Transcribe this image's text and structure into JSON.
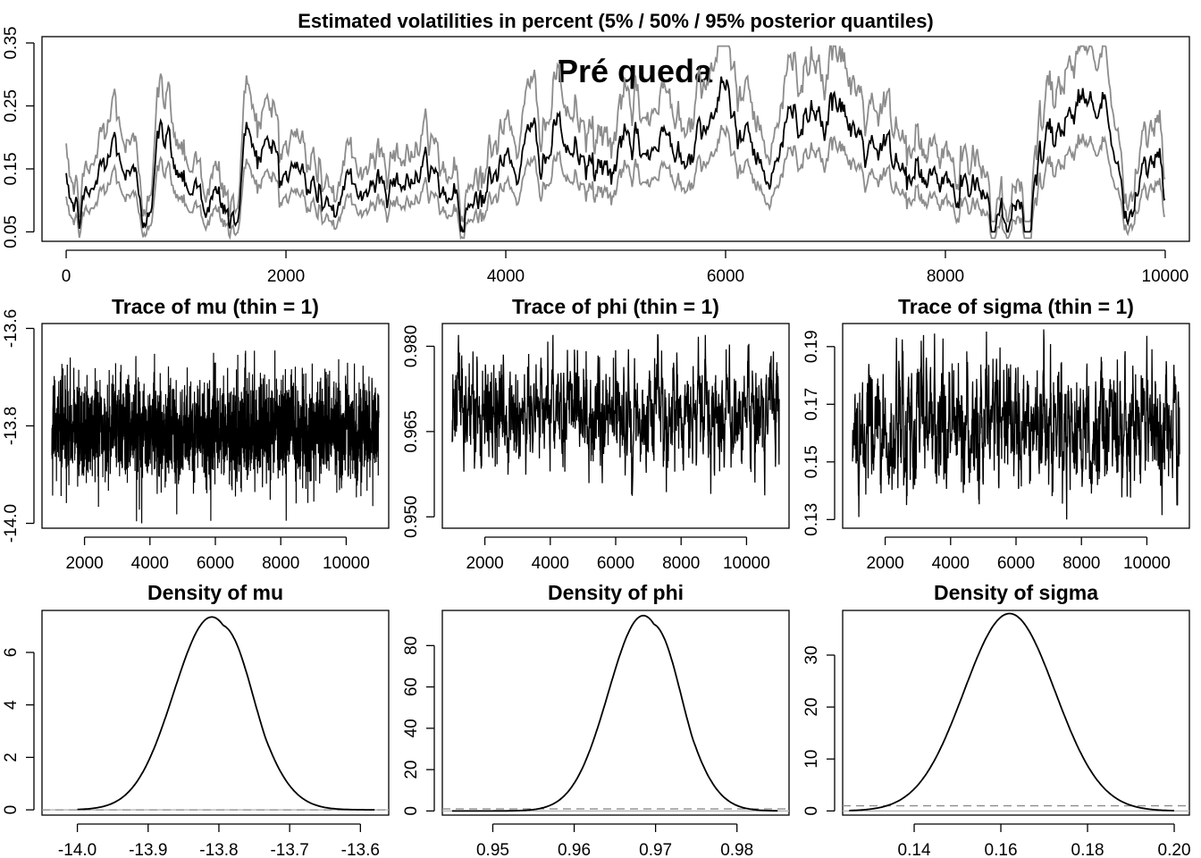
{
  "chart_data": [
    {
      "id": "vol",
      "type": "line",
      "title": "Estimated volatilities in percent (5% / 50% / 95% posterior quantiles)",
      "annotation": "Pré queda",
      "xlim": [
        -220,
        10220
      ],
      "ylim": [
        0.035,
        0.36
      ],
      "xticks": [
        0,
        2000,
        4000,
        6000,
        8000,
        10000
      ],
      "xticklabels": [
        "0",
        "2000",
        "4000",
        "6000",
        "8000",
        "10000"
      ],
      "yticks": [
        0.05,
        0.15,
        0.25,
        0.35
      ],
      "yticklabels": [
        "0.05",
        "0.15",
        "0.25",
        "0.35"
      ],
      "grid": false,
      "colors": {
        "median": "#000000",
        "quantiles": "#8c8c8c"
      },
      "key_points": [
        [
          0,
          0.11
        ],
        [
          120,
          0.07
        ],
        [
          450,
          0.19
        ],
        [
          700,
          0.08
        ],
        [
          850,
          0.2
        ],
        [
          1550,
          0.06
        ],
        [
          1650,
          0.21
        ],
        [
          2450,
          0.09
        ],
        [
          3050,
          0.15
        ],
        [
          3600,
          0.11
        ],
        [
          4450,
          0.2
        ],
        [
          4800,
          0.14
        ],
        [
          5600,
          0.2
        ],
        [
          5900,
          0.26
        ],
        [
          6400,
          0.16
        ],
        [
          6750,
          0.27
        ],
        [
          7500,
          0.15
        ],
        [
          8000,
          0.12
        ],
        [
          8750,
          0.07
        ],
        [
          9100,
          0.25
        ],
        [
          9450,
          0.27
        ],
        [
          9650,
          0.06
        ],
        [
          9950,
          0.18
        ],
        [
          10000,
          0.11
        ]
      ],
      "series": [
        {
          "name": "50%",
          "values_note": "",
          "band": "median"
        },
        {
          "name": "5%",
          "band": "lower"
        },
        {
          "name": "95%",
          "band": "upper"
        }
      ]
    },
    {
      "id": "trace_mu",
      "type": "line",
      "title": "Trace of mu (thin = 1)",
      "xlim": [
        700,
        11300
      ],
      "ylim": [
        -14.01,
        -13.59
      ],
      "xticks": [
        2000,
        4000,
        6000,
        8000,
        10000
      ],
      "xticklabels": [
        "2000",
        "4000",
        "6000",
        "8000",
        "10000"
      ],
      "yticks": [
        -14.0,
        -13.8,
        -13.6
      ],
      "yticklabels": [
        "-14.0",
        "-13.8",
        "-13.6"
      ],
      "x_range": [
        1001,
        11000
      ],
      "center": -13.81,
      "spread": 0.055,
      "extremes": [
        -14.0,
        -13.62
      ]
    },
    {
      "id": "trace_phi",
      "type": "line",
      "title": "Trace of phi (thin = 1)",
      "xlim": [
        700,
        11300
      ],
      "ylim": [
        0.948,
        0.984
      ],
      "xticks": [
        2000,
        4000,
        6000,
        8000,
        10000
      ],
      "xticklabels": [
        "2000",
        "4000",
        "6000",
        "8000",
        "10000"
      ],
      "yticks": [
        0.95,
        0.965,
        0.98
      ],
      "yticklabels": [
        "0.950",
        "0.965",
        "0.980"
      ],
      "x_range": [
        1001,
        11000
      ],
      "center": 0.968,
      "spread": 0.0045,
      "extremes": [
        0.949,
        0.982
      ]
    },
    {
      "id": "trace_sigma",
      "type": "line",
      "title": "Trace of sigma (thin = 1)",
      "xlim": [
        700,
        11300
      ],
      "ylim": [
        0.127,
        0.198
      ],
      "xticks": [
        2000,
        4000,
        6000,
        8000,
        10000
      ],
      "xticklabels": [
        "2000",
        "4000",
        "6000",
        "8000",
        "10000"
      ],
      "yticks": [
        0.13,
        0.15,
        0.17,
        0.19
      ],
      "yticklabels": [
        "0.13",
        "0.15",
        "0.17",
        "0.19"
      ],
      "x_range": [
        1001,
        11000
      ],
      "center": 0.1625,
      "spread": 0.0105,
      "extremes": [
        0.13,
        0.196
      ]
    },
    {
      "id": "dens_mu",
      "type": "line",
      "title": "Density of mu",
      "xlim": [
        -14.05,
        -13.56
      ],
      "ylim": [
        -0.2,
        7.6
      ],
      "xticks": [
        -14.0,
        -13.9,
        -13.8,
        -13.7,
        -13.6
      ],
      "xticklabels": [
        "-14.0",
        "-13.9",
        "-13.8",
        "-13.7",
        "-13.6"
      ],
      "yticks": [
        0,
        2,
        4,
        6
      ],
      "yticklabels": [
        "0",
        "2",
        "4",
        "6"
      ],
      "density": {
        "mean": -13.81,
        "sd": 0.054,
        "peak": 7.35,
        "xmin": -14.0,
        "xmax": -13.58,
        "shoulder": 0.15
      },
      "prior_level": 0.0
    },
    {
      "id": "dens_phi",
      "type": "line",
      "title": "Density of phi",
      "xlim": [
        0.9438,
        0.9864
      ],
      "ylim": [
        -2,
        97
      ],
      "xticks": [
        0.95,
        0.96,
        0.97,
        0.98
      ],
      "xticklabels": [
        "0.95",
        "0.96",
        "0.97",
        "0.98"
      ],
      "yticks": [
        0,
        20,
        40,
        60,
        80
      ],
      "yticklabels": [
        "0",
        "20",
        "40",
        "60",
        "80"
      ],
      "density": {
        "mean": 0.9685,
        "sd": 0.0043,
        "peak": 94.5,
        "xmin": 0.945,
        "xmax": 0.985,
        "shoulder": 0.15
      },
      "prior_level": 1.0
    },
    {
      "id": "dens_sigma",
      "type": "line",
      "title": "Density of sigma",
      "xlim": [
        0.1235,
        0.2035
      ],
      "ylim": [
        -0.8,
        38.6
      ],
      "xticks": [
        0.14,
        0.16,
        0.18,
        0.2
      ],
      "xticklabels": [
        "0.14",
        "0.16",
        "0.18",
        "0.20"
      ],
      "yticks": [
        0,
        10,
        20,
        30
      ],
      "yticklabels": [
        "0",
        "10",
        "20",
        "30"
      ],
      "density": {
        "mean": 0.162,
        "sd": 0.0105,
        "peak": 38.0,
        "xmin": 0.125,
        "xmax": 0.2,
        "shoulder": 0.0
      },
      "prior_level": 1.0
    }
  ]
}
